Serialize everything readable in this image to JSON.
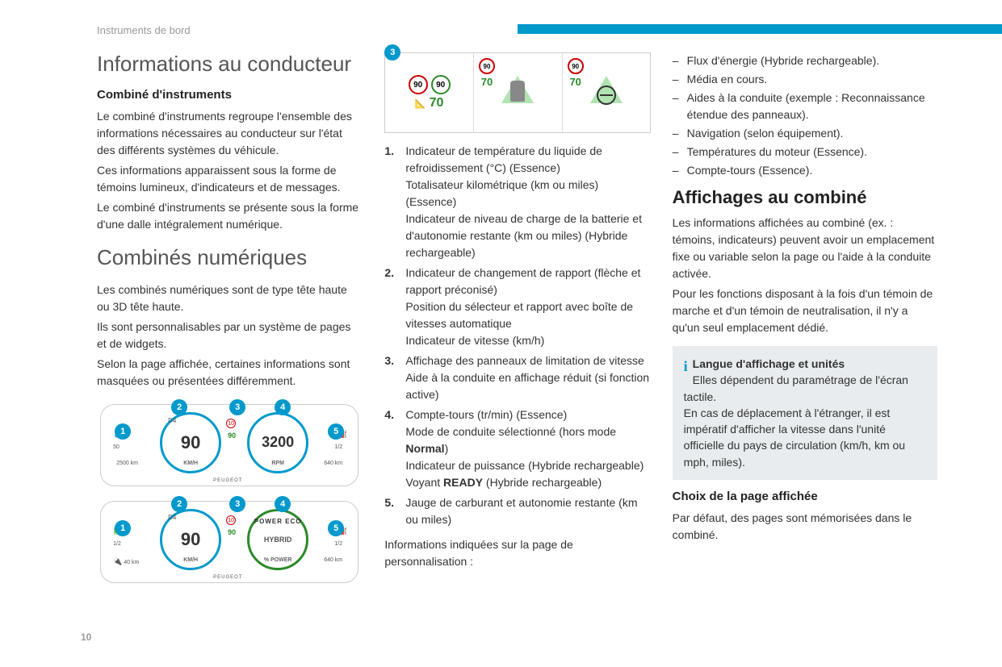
{
  "breadcrumb": "Instruments de bord",
  "page_number": "10",
  "colors": {
    "accent": "#0099cc",
    "sign_ring": "#cc0000",
    "green": "#2a8a2a",
    "info_bg": "#e8ecee"
  },
  "diagram_top": {
    "callout": "3",
    "sign_value": "90",
    "speed_value": "70"
  },
  "cluster1": {
    "callouts": [
      "1",
      "2",
      "3",
      "4",
      "5"
    ],
    "speed": "90",
    "rpm": "3200",
    "gear": "D4",
    "small_sign": "10",
    "small_limit": "90",
    "temp_lo": "50",
    "odo": "2500 km",
    "unit_l": "KM/H",
    "unit_r": "RPM",
    "brand": "PEUGEOT",
    "fuel": "1/2",
    "range": "640 km"
  },
  "cluster2": {
    "callouts": [
      "1",
      "2",
      "3",
      "4",
      "5"
    ],
    "speed": "90",
    "mode": "HYBRID",
    "ring_labels": "POWER  ECO",
    "gear": "D4",
    "small_sign": "10",
    "small_limit": "90",
    "batt": "1/2",
    "batt_range": "40 km",
    "unit_l": "KM/H",
    "unit_r": "% POWER",
    "brand": "PEUGEOT",
    "fuel": "1/2",
    "range": "640 km"
  },
  "col1": {
    "h1": "Informations au conducteur",
    "h3a": "Combiné d'instruments",
    "p1": "Le combiné d'instruments regroupe l'ensemble des informations nécessaires au conducteur sur l'état des différents systèmes du véhicule.",
    "p2": "Ces informations apparaissent sous la forme de témoins lumineux, d'indicateurs et de messages.",
    "p3": "Le combiné d'instruments se présente sous la forme d'une dalle intégralement numérique.",
    "h1b": "Combinés numériques",
    "p4": "Les combinés numériques sont de type tête haute ou 3D tête haute.",
    "p5": "Ils sont personnalisables par un système de pages et de widgets.",
    "p6": "Selon la page affichée, certaines informations sont masquées ou présentées différemment."
  },
  "col2": {
    "list": [
      "Indicateur de température du liquide de refroidissement (°C) (Essence)\nTotalisateur kilométrique (km ou miles) (Essence)\nIndicateur de niveau de charge de la batterie et d'autonomie restante (km ou miles) (Hybride rechargeable)",
      "Indicateur de changement de rapport (flèche et rapport préconisé)\nPosition du sélecteur et rapport avec boîte de vitesses automatique\nIndicateur de vitesse (km/h)",
      "Affichage des panneaux de limitation de vitesse\nAide à la conduite en affichage réduit (si fonction active)",
      "Compte-tours (tr/min) (Essence)\nMode de conduite sélectionné (hors mode <strong>Normal</strong>)\nIndicateur de puissance (Hybride rechargeable)\nVoyant <strong>READY</strong> (Hybride rechargeable)",
      "Jauge de carburant et autonomie restante (km ou miles)"
    ],
    "p_after": "Informations indiquées sur la page de personnalisation :"
  },
  "col3": {
    "bullets": [
      "Flux d'énergie (Hybride rechargeable).",
      "Média en cours.",
      "Aides à la conduite (exemple : Reconnaissance étendue des panneaux).",
      "Navigation (selon équipement).",
      "Températures du moteur (Essence).",
      "Compte-tours (Essence)."
    ],
    "h2": "Affichages au combiné",
    "p1": "Les informations affichées au combiné (ex. : témoins, indicateurs) peuvent avoir un emplacement fixe ou variable selon la page ou l'aide à la conduite activée.",
    "p2": "Pour les fonctions disposant à la fois d'un témoin de marche et d'un témoin de neutralisation, il n'y a qu'un seul emplacement dédié.",
    "info_title": "Langue d'affichage et unités",
    "info_p1": "Elles dépendent du paramétrage de l'écran tactile.",
    "info_p2": "En cas de déplacement à l'étranger, il est impératif d'afficher la vitesse dans l'unité officielle du pays de circulation (km/h, km ou mph, miles).",
    "h3": "Choix de la page affichée",
    "p3": "Par défaut, des pages sont mémorisées dans le combiné."
  }
}
